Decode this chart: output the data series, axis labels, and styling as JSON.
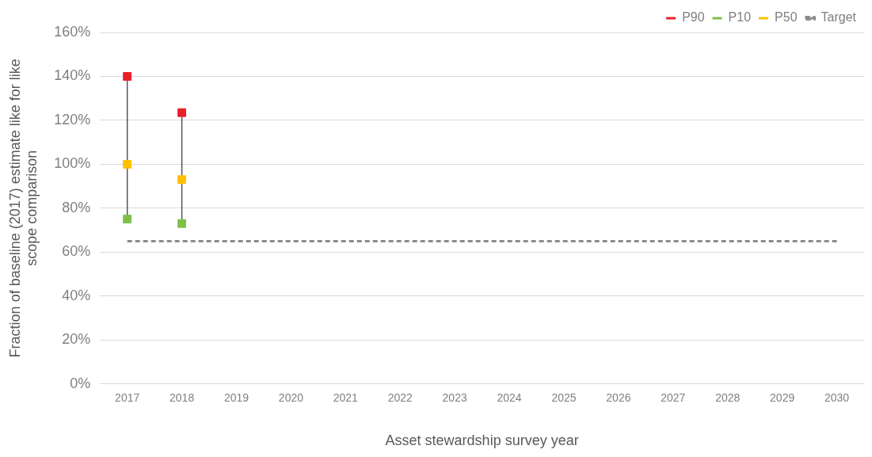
{
  "chart_data": {
    "type": "scatter",
    "xlabel": "Asset stewardship survey year",
    "ylabel": "Fraction of baseline (2017) estimate like for like scope comparison",
    "categories": [
      "2017",
      "2018",
      "2019",
      "2020",
      "2021",
      "2022",
      "2023",
      "2024",
      "2025",
      "2026",
      "2027",
      "2028",
      "2029",
      "2030"
    ],
    "series": [
      {
        "name": "P90",
        "color": "#e8202a",
        "values": [
          140,
          123.5,
          null,
          null,
          null,
          null,
          null,
          null,
          null,
          null,
          null,
          null,
          null,
          null
        ]
      },
      {
        "name": "P10",
        "color": "#7ec04a",
        "values": [
          75,
          73,
          null,
          null,
          null,
          null,
          null,
          null,
          null,
          null,
          null,
          null,
          null,
          null
        ]
      },
      {
        "name": "P50",
        "color": "#ffc000",
        "values": [
          100,
          93,
          null,
          null,
          null,
          null,
          null,
          null,
          null,
          null,
          null,
          null,
          null,
          null
        ]
      },
      {
        "name": "Target",
        "type": "line",
        "color": "#8c8c8c",
        "line_style": "dashed",
        "marker": "none",
        "values": [
          65,
          65,
          65,
          65,
          65,
          65,
          65,
          65,
          65,
          65,
          65,
          65,
          65,
          65
        ]
      }
    ],
    "marker": "square",
    "ylim": [
      0,
      160
    ],
    "yticks": [
      {
        "value": 0,
        "label": "0%"
      },
      {
        "value": 20,
        "label": "20%"
      },
      {
        "value": 40,
        "label": "40%"
      },
      {
        "value": 60,
        "label": "60%"
      },
      {
        "value": 80,
        "label": "80%"
      },
      {
        "value": 100,
        "label": "100%"
      },
      {
        "value": 120,
        "label": "120%"
      },
      {
        "value": 140,
        "label": "140%"
      },
      {
        "value": 160,
        "label": "160%"
      }
    ],
    "grid": "y",
    "legend": "top right"
  }
}
